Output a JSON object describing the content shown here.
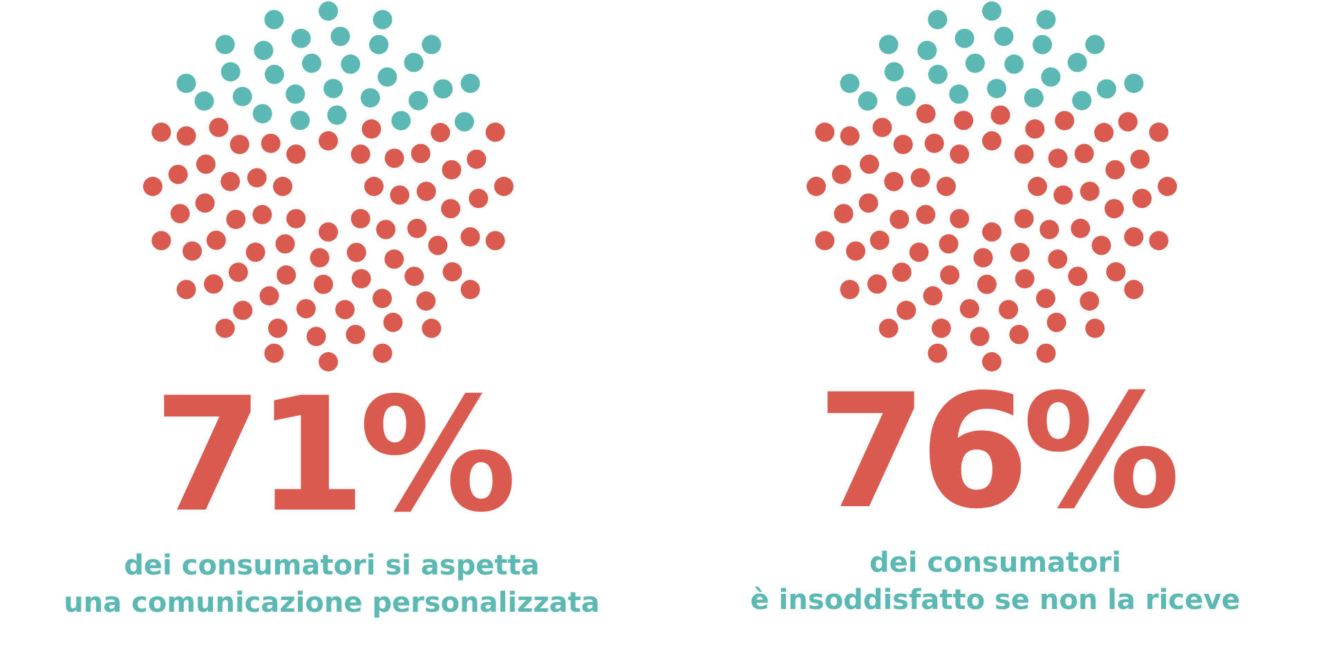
{
  "colors": {
    "filled": "#d95b4f",
    "empty": "#5bb8b3",
    "caption": "#5bb8b3",
    "background": "#ffffff"
  },
  "chart_data": [
    {
      "type": "dot-proportion",
      "dot_count": 100,
      "filled_percent": 71,
      "value_label": "71%",
      "caption_lines": [
        "dei consumatori si aspetta",
        "una comunicazione personalizzata"
      ]
    },
    {
      "type": "dot-proportion",
      "dot_count": 100,
      "filled_percent": 76,
      "value_label": "76%",
      "caption_lines": [
        "dei consumatori",
        "è insoddisfatto se non la riceve"
      ]
    }
  ]
}
